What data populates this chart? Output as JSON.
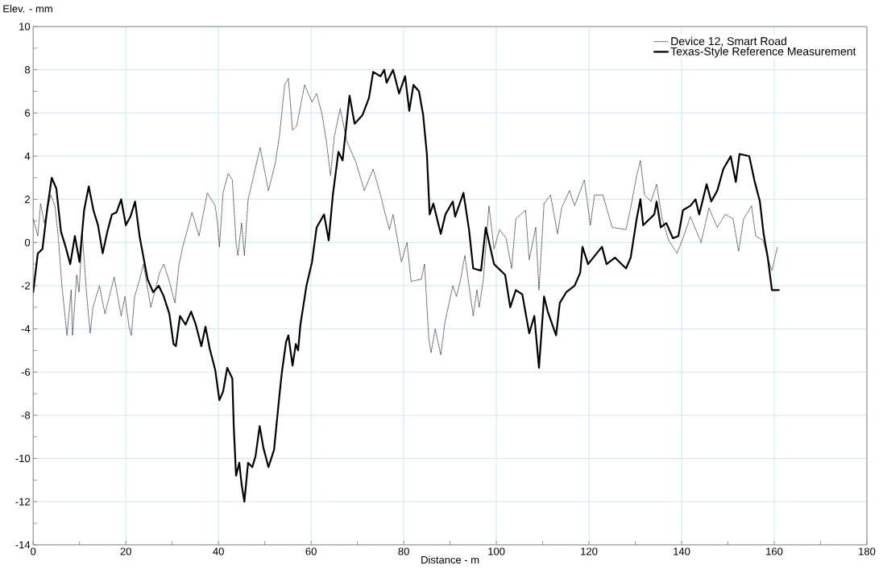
{
  "chart_data": {
    "type": "line",
    "xlabel": "Distance - m",
    "ylabel": "Elev.   - mm",
    "xlim": [
      0,
      180
    ],
    "ylim": [
      -14,
      10
    ],
    "xticks": [
      0,
      {
        "value": 10,
        "label": null
      },
      20,
      {
        "value": 30,
        "label": null
      },
      40,
      {
        "value": 50,
        "label": null
      },
      60,
      {
        "value": 70,
        "label": null
      },
      80,
      {
        "value": 90,
        "label": null
      },
      100,
      {
        "value": 110,
        "label": null
      },
      120,
      {
        "value": 130,
        "label": null
      },
      140,
      {
        "value": 150,
        "label": null
      },
      160,
      {
        "value": 170,
        "label": null
      },
      180
    ],
    "yticks": [
      -14,
      {
        "value": -13,
        "label": null
      },
      -12,
      {
        "value": -11,
        "label": null
      },
      -10,
      {
        "value": -9,
        "label": null
      },
      -8,
      {
        "value": -7,
        "label": null
      },
      -6,
      {
        "value": -5,
        "label": null
      },
      -4,
      {
        "value": -3,
        "label": null
      },
      -2,
      {
        "value": -1,
        "label": null
      },
      0,
      {
        "value": 1,
        "label": null
      },
      2,
      {
        "value": 3,
        "label": null
      },
      4,
      {
        "value": 5,
        "label": null
      },
      6,
      {
        "value": 7,
        "label": null
      },
      8,
      {
        "value": 9,
        "label": null
      },
      10
    ],
    "grid": true,
    "legend": "top right",
    "series": [
      {
        "name": "Device 12, Smart Road",
        "color": "#000000",
        "line_style": "dashed",
        "x": [
          0,
          1,
          1.6,
          2.4,
          3,
          3.8,
          4.7,
          5.4,
          6.2,
          7.3,
          8.2,
          8.5,
          9.4,
          9.9,
          10.6,
          11.5,
          12.3,
          12.9,
          14.3,
          15.5,
          17.5,
          19,
          19.8,
          20.7,
          21.2,
          21.9,
          23,
          23.8,
          25.4,
          27.3,
          28.2,
          29.4,
          30.6,
          31.5,
          32.3,
          34.3,
          35.8,
          37.6,
          39.3,
          39.8,
          40.2,
          41,
          42.1,
          43,
          43.8,
          44.2,
          45,
          45.6,
          46.4,
          47.3,
          49,
          50.8,
          52.3,
          53.2,
          54.3,
          55.1,
          56,
          56.9,
          58.6,
          60.2,
          61.2,
          62.4,
          63.3,
          64.2,
          65,
          66.3,
          67.7,
          69.7,
          71.5,
          73.4,
          75,
          75.8,
          76.9,
          77.7,
          79.5,
          80.7,
          81.6,
          83.8,
          84.5,
          85.4,
          85.9,
          86.8,
          88,
          88.9,
          89.7,
          90.6,
          91.4,
          92.3,
          93.2,
          95,
          95.8,
          96.3,
          97.2,
          98.4,
          99.5,
          100.7,
          102.1,
          103.3,
          104.2,
          106.3,
          107.1,
          108.5,
          109.2,
          110.3,
          111.7,
          113.2,
          114.1,
          115.8,
          116.9,
          119,
          120.3,
          121.2,
          123,
          125,
          128,
          129,
          130.3,
          131.1,
          132,
          133.4,
          134.6,
          135.8,
          137.2,
          139,
          140.3,
          141.9,
          144.2,
          145.9,
          147.7,
          149.4,
          151.1,
          152.3,
          153.4,
          155.1,
          156,
          157.6,
          159,
          159.5,
          160.7
        ],
        "values": [
          1.1,
          0.3,
          1.8,
          0.9,
          1.5,
          2.2,
          1.7,
          0.3,
          -2.0,
          -4.3,
          -2.2,
          -4.3,
          -1.5,
          -2.3,
          0.4,
          -2.3,
          -4.2,
          -3.0,
          -2.0,
          -3.3,
          -1.6,
          -3.4,
          -2.5,
          -3.9,
          -4.3,
          -2.5,
          -1.7,
          -1.0,
          -3.0,
          -1.4,
          -1.0,
          -1.8,
          -2.8,
          -1.0,
          -0.2,
          1.4,
          0.3,
          2.3,
          1.7,
          0.9,
          -0.2,
          2.3,
          3.2,
          2.9,
          0,
          -0.6,
          0.9,
          -0.6,
          2.0,
          2.8,
          4.4,
          2.4,
          3.7,
          5.0,
          7.3,
          7.6,
          5.2,
          5.4,
          7.3,
          6.5,
          6.9,
          5.9,
          4.7,
          3.1,
          4.9,
          6.2,
          4.7,
          3.7,
          2.4,
          3.4,
          2.2,
          1.5,
          0.6,
          1.3,
          -0.9,
          0,
          -1.8,
          -1.7,
          -1.0,
          -4.4,
          -5.1,
          -4.0,
          -5.2,
          -3.7,
          -2.9,
          -2.0,
          -2.5,
          -1.7,
          -0.6,
          -3.4,
          -2.2,
          -3.0,
          -1.7,
          1.7,
          -0.3,
          0.6,
          0.2,
          -1.2,
          1.1,
          1.5,
          -0.8,
          0.7,
          -2.2,
          1.8,
          2.2,
          0.4,
          1.6,
          2.4,
          1.7,
          2.9,
          0.8,
          2.2,
          2.2,
          0.7,
          0.6,
          1.6,
          3.1,
          3.8,
          2.2,
          1.9,
          2.7,
          1.1,
          0.1,
          -0.5,
          0.2,
          1.2,
          0,
          1.6,
          0.7,
          1.3,
          1.1,
          -0.4,
          1.1,
          1.7,
          0.3,
          0.1,
          -1.0,
          -1.3,
          -0.2
        ]
      },
      {
        "name": "Texas-Style Reference Measurement",
        "color": "#000000",
        "line_style": "solid",
        "x": [
          0,
          1,
          2,
          3,
          4,
          5,
          6,
          7,
          8,
          9,
          10,
          11,
          12,
          13,
          14,
          15,
          16,
          17,
          18,
          19,
          20,
          21,
          22,
          23,
          24.7,
          25.9,
          27.1,
          28.2,
          29.4,
          30.3,
          30.8,
          31.7,
          32.9,
          34.1,
          35.1,
          36.3,
          37.2,
          38.1,
          39.3,
          40.2,
          41,
          41.9,
          43,
          43.3,
          43.8,
          44.5,
          45,
          45.6,
          46.4,
          47.3,
          48,
          48.9,
          49.7,
          50.8,
          52,
          53.2,
          53.7,
          54.6,
          55.1,
          56,
          56.7,
          57.2,
          57.7,
          59,
          60.2,
          61.2,
          62.8,
          63.8,
          64.7,
          65.9,
          66.8,
          68.3,
          69.4,
          71.1,
          72.5,
          73.4,
          75,
          75.8,
          76.3,
          77.7,
          79,
          80.3,
          81.2,
          82.1,
          83.3,
          84.2,
          85,
          85.6,
          86.4,
          88,
          89,
          90.6,
          91.1,
          92.9,
          94.1,
          95,
          96.7,
          97.7,
          99.5,
          101.9,
          103,
          104.2,
          105.6,
          107.1,
          108.2,
          109.2,
          110.3,
          111.1,
          112.9,
          113.7,
          115.1,
          116.9,
          118.1,
          118.6,
          119.8,
          122.8,
          123.8,
          125.6,
          128,
          129,
          130.3,
          131.1,
          131.7,
          134.1,
          134.6,
          135.5,
          136.7,
          138.1,
          139.3,
          140.3,
          141.9,
          143,
          143.8,
          145.4,
          146.4,
          147.7,
          149,
          150.6,
          151.7,
          152.5,
          154.6,
          155.8,
          156.9,
          157.7,
          158.6,
          159.5,
          161
        ],
        "values": [
          -2.3,
          -0.5,
          -0.3,
          1.5,
          3.0,
          2.5,
          0.5,
          -0.2,
          -1.0,
          0.3,
          -0.9,
          1.5,
          2.6,
          1.5,
          0.8,
          -0.5,
          0.5,
          1.3,
          1.4,
          2.0,
          0.8,
          1.2,
          1.9,
          0.25,
          -1.7,
          -2.3,
          -2.0,
          -2.5,
          -3.3,
          -4.7,
          -4.8,
          -3.4,
          -3.8,
          -3.2,
          -3.8,
          -4.8,
          -3.9,
          -4.9,
          -5.9,
          -7.3,
          -6.9,
          -5.8,
          -6.3,
          -8.5,
          -10.8,
          -10.2,
          -11.2,
          -12.0,
          -10.2,
          -10.4,
          -9.9,
          -8.5,
          -9.5,
          -10.4,
          -9.6,
          -7.0,
          -6.0,
          -4.6,
          -4.3,
          -5.7,
          -4.7,
          -5.0,
          -3.8,
          -2.0,
          -0.9,
          0.7,
          1.3,
          0.1,
          2.2,
          4.2,
          3.8,
          6.8,
          5.5,
          5.9,
          6.7,
          7.9,
          7.7,
          8.0,
          7.4,
          8.0,
          6.9,
          7.7,
          6.1,
          7.3,
          7.0,
          5.9,
          4.1,
          1.3,
          1.8,
          0.4,
          1.3,
          1.9,
          1.2,
          2.3,
          0.6,
          -1.2,
          -1.3,
          0.7,
          -1.0,
          -1.5,
          -3.0,
          -2.2,
          -2.4,
          -4.2,
          -3.4,
          -5.8,
          -2.5,
          -3.2,
          -4.3,
          -2.8,
          -2.3,
          -2.0,
          -1.4,
          -0.2,
          -1.0,
          -0.2,
          -1.0,
          -0.7,
          -1.2,
          -0.7,
          1.1,
          2.0,
          0.8,
          1.3,
          1.9,
          0.7,
          0.9,
          0.2,
          0.3,
          1.5,
          1.7,
          2.0,
          1.3,
          2.7,
          1.9,
          2.4,
          3.4,
          4.0,
          2.8,
          4.1,
          4.0,
          2.8,
          1.9,
          0.4,
          -0.7,
          -2.2,
          -2.2
        ]
      }
    ]
  }
}
